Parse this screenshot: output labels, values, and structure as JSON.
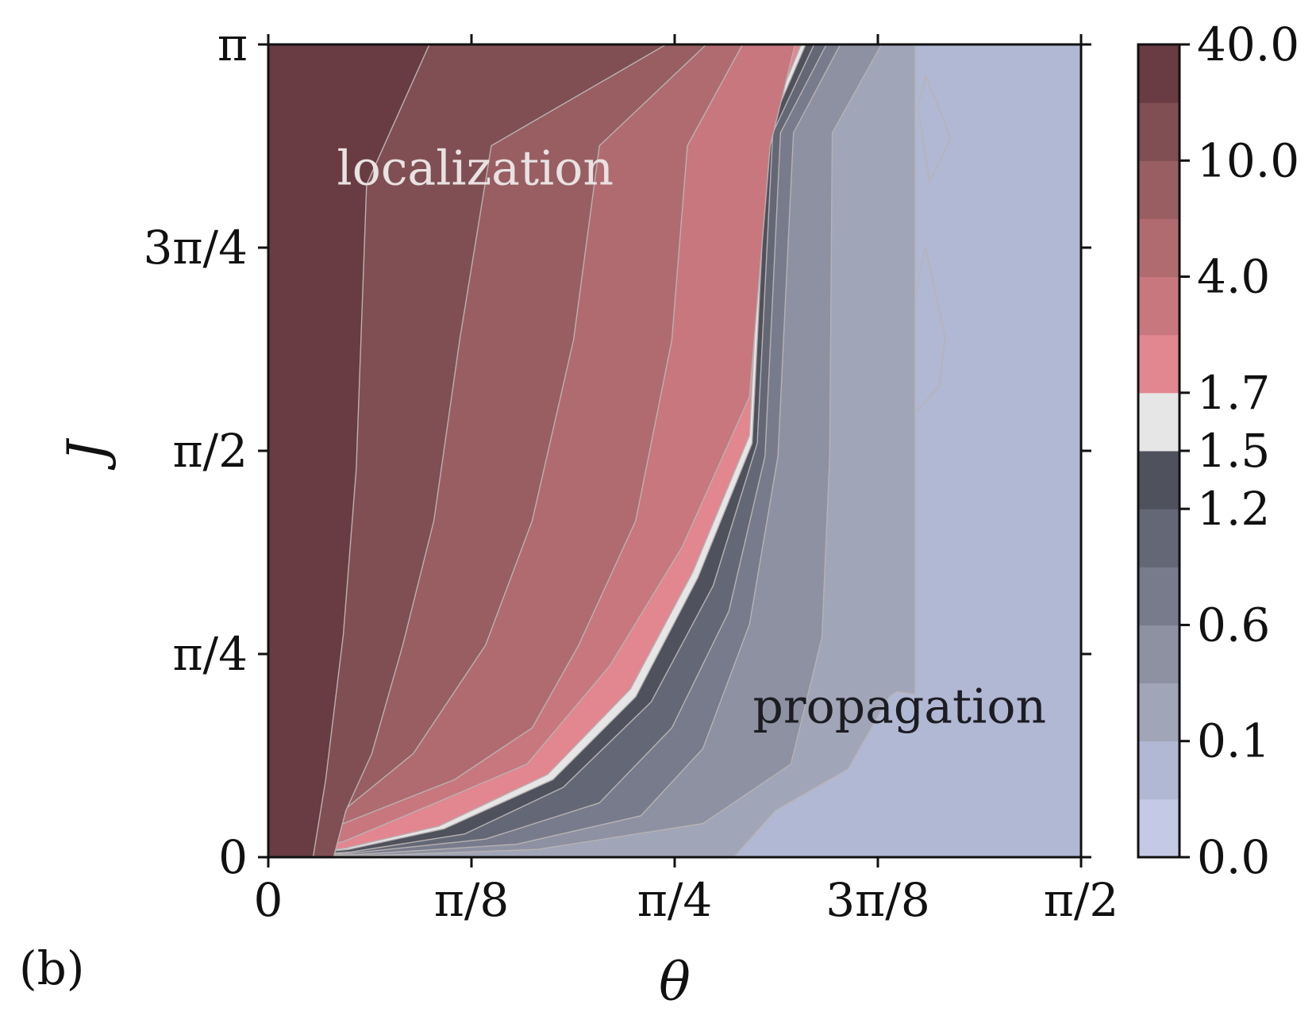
{
  "chart_data": {
    "type": "heatmap",
    "panel_label": "(b)",
    "xlabel": "θ",
    "ylabel": "J",
    "xlim": [
      0,
      1.5708
    ],
    "ylim": [
      0,
      3.1416
    ],
    "xticks": [
      {
        "value": 0,
        "label": "0"
      },
      {
        "value": 0.3927,
        "label": "π/8"
      },
      {
        "value": 0.7854,
        "label": "π/4"
      },
      {
        "value": 1.1781,
        "label": "3π/8"
      },
      {
        "value": 1.5708,
        "label": "π/2"
      }
    ],
    "yticks": [
      {
        "value": 0,
        "label": "0"
      },
      {
        "value": 0.7854,
        "label": "π/4"
      },
      {
        "value": 1.5708,
        "label": "π/2"
      },
      {
        "value": 2.3562,
        "label": "3π/4"
      },
      {
        "value": 3.1416,
        "label": "π"
      }
    ],
    "annotations": [
      {
        "text": "localization",
        "x": 0.4,
        "y": 2.6,
        "style": "light"
      },
      {
        "text": "propagation",
        "x": 1.22,
        "y": 0.52,
        "style": "dark"
      }
    ],
    "colorbar": {
      "levels": [
        0.0,
        0.05,
        0.1,
        0.3,
        0.6,
        0.9,
        1.2,
        1.5,
        1.7,
        2.5,
        4.0,
        7.0,
        10.0,
        20.0,
        40.0
      ],
      "colors": [
        "#c4c9e6",
        "#b1b8d3",
        "#a1a5b8",
        "#8d91a2",
        "#787b8b",
        "#646775",
        "#4f525d",
        "#e6e6e6",
        "#e28690",
        "#c8777f",
        "#b06b70",
        "#985e62",
        "#804f53",
        "#683c42"
      ],
      "tick_labels": [
        {
          "value": 40.0,
          "label": "40.0"
        },
        {
          "value": 10.0,
          "label": "10.0"
        },
        {
          "value": 4.0,
          "label": "4.0"
        },
        {
          "value": 1.7,
          "label": "1.7"
        },
        {
          "value": 1.5,
          "label": "1.5"
        },
        {
          "value": 1.2,
          "label": "1.2"
        },
        {
          "value": 0.6,
          "label": "0.6"
        },
        {
          "value": 0.1,
          "label": "0.1"
        },
        {
          "value": 0.0,
          "label": "0.0"
        }
      ]
    },
    "contour_boundaries": [
      {
        "level": 20.0,
        "points": [
          [
            0.0866,
            0
          ],
          [
            0.111,
            0.3
          ],
          [
            0.145,
            0.86
          ],
          [
            0.17,
            1.5
          ],
          [
            0.19,
            2.6
          ],
          [
            0.3114,
            3.1416
          ]
        ]
      },
      {
        "level": 10.0,
        "points": [
          [
            0.1263,
            0
          ],
          [
            0.15,
            0.18
          ],
          [
            0.2,
            0.4
          ],
          [
            0.26,
            0.82
          ],
          [
            0.32,
            1.3
          ],
          [
            0.37,
            2.0
          ],
          [
            0.431,
            2.75
          ],
          [
            0.7689,
            3.1416
          ]
        ]
      },
      {
        "level": 7.0,
        "points": [
          [
            0.145,
            0.18
          ],
          [
            0.28,
            0.4
          ],
          [
            0.42,
            0.82
          ],
          [
            0.51,
            1.3
          ],
          [
            0.59,
            2.0
          ],
          [
            0.64,
            2.75
          ],
          [
            0.8467,
            3.1416
          ]
        ]
      },
      {
        "level": 4.0,
        "points": [
          [
            0.145,
            0.13
          ],
          [
            0.36,
            0.3
          ],
          [
            0.51,
            0.5
          ],
          [
            0.6,
            0.82
          ],
          [
            0.71,
            1.3
          ],
          [
            0.78,
            2.0
          ],
          [
            0.81,
            2.75
          ],
          [
            0.9166,
            3.1416
          ]
        ]
      },
      {
        "level": 2.5,
        "points": [
          [
            0.145,
            0.06
          ],
          [
            0.3,
            0.19
          ],
          [
            0.5,
            0.36
          ],
          [
            0.66,
            0.74
          ],
          [
            0.8,
            1.2
          ],
          [
            0.93,
            1.78
          ],
          [
            0.97,
            2.75
          ],
          [
            1.0181,
            3.1416
          ]
        ]
      },
      {
        "level": 1.7,
        "points": [
          [
            0.15,
            0.035
          ],
          [
            0.33,
            0.12
          ],
          [
            0.54,
            0.32
          ],
          [
            0.7,
            0.65
          ],
          [
            0.82,
            1.1
          ],
          [
            0.93,
            1.63
          ],
          [
            0.96,
            2.8
          ],
          [
            1.03,
            3.1416
          ]
        ]
      },
      {
        "level": 1.5,
        "points": [
          [
            0.155,
            0.03
          ],
          [
            0.34,
            0.11
          ],
          [
            0.55,
            0.3
          ],
          [
            0.71,
            0.62
          ],
          [
            0.83,
            1.08
          ],
          [
            0.935,
            1.6
          ],
          [
            0.965,
            2.8
          ],
          [
            1.0386,
            3.1416
          ]
        ]
      },
      {
        "level": 1.2,
        "points": [
          [
            0.16,
            0.02
          ],
          [
            0.38,
            0.09
          ],
          [
            0.57,
            0.27
          ],
          [
            0.74,
            0.6
          ],
          [
            0.86,
            1.05
          ],
          [
            0.945,
            1.6
          ],
          [
            0.975,
            2.8
          ],
          [
            1.055,
            3.1416
          ]
        ]
      },
      {
        "level": 0.9,
        "points": [
          [
            0.16,
            0.015
          ],
          [
            0.42,
            0.07
          ],
          [
            0.64,
            0.21
          ],
          [
            0.78,
            0.5
          ],
          [
            0.89,
            0.95
          ],
          [
            0.96,
            1.55
          ],
          [
            0.99,
            2.8
          ],
          [
            1.0787,
            3.1416
          ]
        ]
      },
      {
        "level": 0.6,
        "points": [
          [
            0.17,
            0.01
          ],
          [
            0.48,
            0.05
          ],
          [
            0.72,
            0.16
          ],
          [
            0.84,
            0.42
          ],
          [
            0.93,
            0.9
          ],
          [
            0.985,
            1.55
          ],
          [
            1.015,
            2.8
          ],
          [
            1.1056,
            3.1416
          ]
        ]
      },
      {
        "level": 0.3,
        "points": [
          [
            0.18,
            0.005
          ],
          [
            0.52,
            0.03
          ],
          [
            0.84,
            0.13
          ],
          [
            1.01,
            0.36
          ],
          [
            1.07,
            0.85
          ],
          [
            1.085,
            1.55
          ],
          [
            1.09,
            2.8
          ],
          [
            1.1851,
            3.1416
          ]
        ]
      },
      {
        "level": 0.1,
        "points": [
          [
            0.9,
            0
          ],
          [
            0.98,
            0.18
          ],
          [
            1.12,
            0.34
          ],
          [
            1.2,
            0.62
          ],
          [
            1.215,
            0.64
          ],
          [
            1.25,
            0.63
          ],
          [
            1.25,
            3.1416
          ]
        ]
      }
    ],
    "islands": [
      {
        "level": 0.05,
        "points": [
          [
            1.25,
            2.16
          ],
          [
            1.27,
            2.36
          ],
          [
            1.308,
            2.01
          ],
          [
            1.297,
            1.82
          ],
          [
            1.25,
            1.72
          ]
        ]
      },
      {
        "level": 0.05,
        "points": [
          [
            1.255,
            2.9
          ],
          [
            1.271,
            3.02
          ],
          [
            1.319,
            2.78
          ],
          [
            1.278,
            2.61
          ],
          [
            1.262,
            2.82
          ]
        ]
      }
    ]
  }
}
